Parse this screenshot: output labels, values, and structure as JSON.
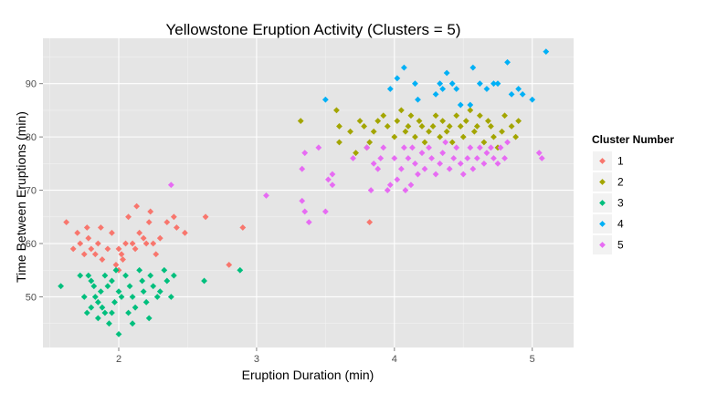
{
  "chart_data": {
    "type": "scatter",
    "title": "Yellowstone Eruption Activity (Clusters = 5)",
    "xlabel": "Eruption Duration (min)",
    "ylabel": "Time Between Eruptions (min)",
    "xlim": [
      1.45,
      5.3
    ],
    "ylim": [
      40.5,
      98.5
    ],
    "x_ticks": [
      2,
      3,
      4,
      5
    ],
    "y_ticks": [
      50,
      60,
      70,
      80,
      90
    ],
    "grid": true,
    "legend": {
      "title": "Cluster Number",
      "position": "right",
      "entries": [
        "1",
        "2",
        "3",
        "4",
        "5"
      ]
    },
    "series": [
      {
        "name": "1",
        "color": "#F8766D",
        "points": [
          [
            1.62,
            64
          ],
          [
            1.67,
            59
          ],
          [
            1.72,
            60
          ],
          [
            1.75,
            58
          ],
          [
            1.77,
            63
          ],
          [
            1.8,
            59
          ],
          [
            1.83,
            58
          ],
          [
            1.85,
            60
          ],
          [
            1.87,
            63
          ],
          [
            1.88,
            57
          ],
          [
            1.78,
            61
          ],
          [
            1.95,
            62
          ],
          [
            1.98,
            56
          ],
          [
            2.0,
            59
          ],
          [
            2.02,
            58
          ],
          [
            2.03,
            57
          ],
          [
            2.05,
            60
          ],
          [
            2.07,
            65
          ],
          [
            2.1,
            60
          ],
          [
            2.12,
            59
          ],
          [
            2.13,
            67
          ],
          [
            2.15,
            62
          ],
          [
            2.18,
            61
          ],
          [
            2.2,
            60
          ],
          [
            2.22,
            64
          ],
          [
            2.25,
            60
          ],
          [
            2.27,
            58
          ],
          [
            2.3,
            61
          ],
          [
            2.35,
            64
          ],
          [
            2.4,
            65
          ],
          [
            2.42,
            63
          ],
          [
            2.48,
            62
          ],
          [
            2.63,
            65
          ],
          [
            2.8,
            56
          ],
          [
            2.9,
            63
          ],
          [
            1.92,
            59
          ],
          [
            1.7,
            62
          ],
          [
            2.0,
            55
          ],
          [
            2.23,
            66
          ],
          [
            3.82,
            64
          ]
        ]
      },
      {
        "name": "2",
        "color": "#A3A500",
        "points": [
          [
            3.32,
            83
          ],
          [
            3.58,
            85
          ],
          [
            3.6,
            79
          ],
          [
            3.6,
            82
          ],
          [
            3.68,
            81
          ],
          [
            3.72,
            77
          ],
          [
            3.75,
            83
          ],
          [
            3.78,
            82
          ],
          [
            3.8,
            78
          ],
          [
            3.82,
            79
          ],
          [
            3.85,
            81
          ],
          [
            3.88,
            83
          ],
          [
            3.92,
            84
          ],
          [
            3.95,
            82
          ],
          [
            4.0,
            80
          ],
          [
            4.02,
            83
          ],
          [
            4.05,
            85
          ],
          [
            4.08,
            81
          ],
          [
            4.1,
            82
          ],
          [
            4.12,
            84
          ],
          [
            4.15,
            80
          ],
          [
            4.18,
            83
          ],
          [
            4.2,
            82
          ],
          [
            4.22,
            79
          ],
          [
            4.25,
            81
          ],
          [
            4.28,
            82
          ],
          [
            4.3,
            84
          ],
          [
            4.33,
            80
          ],
          [
            4.35,
            83
          ],
          [
            4.38,
            81
          ],
          [
            4.4,
            82
          ],
          [
            4.42,
            79
          ],
          [
            4.45,
            84
          ],
          [
            4.48,
            82
          ],
          [
            4.5,
            80
          ],
          [
            4.52,
            83
          ],
          [
            4.55,
            85
          ],
          [
            4.58,
            81
          ],
          [
            4.6,
            82
          ],
          [
            4.62,
            84
          ],
          [
            4.65,
            79
          ],
          [
            4.68,
            83
          ],
          [
            4.7,
            82
          ],
          [
            4.72,
            80
          ],
          [
            4.75,
            78
          ],
          [
            4.78,
            81
          ],
          [
            4.8,
            84
          ],
          [
            4.85,
            82
          ],
          [
            4.88,
            80
          ],
          [
            4.9,
            83
          ]
        ]
      },
      {
        "name": "3",
        "color": "#00BF7D",
        "points": [
          [
            1.58,
            52
          ],
          [
            1.72,
            54
          ],
          [
            1.75,
            50
          ],
          [
            1.77,
            47
          ],
          [
            1.78,
            54
          ],
          [
            1.8,
            53
          ],
          [
            1.82,
            52
          ],
          [
            1.83,
            50
          ],
          [
            1.85,
            49
          ],
          [
            1.85,
            46
          ],
          [
            1.87,
            51
          ],
          [
            1.88,
            48
          ],
          [
            1.9,
            54
          ],
          [
            1.9,
            47
          ],
          [
            1.92,
            52
          ],
          [
            1.93,
            45
          ],
          [
            1.95,
            53
          ],
          [
            1.97,
            49
          ],
          [
            1.98,
            55
          ],
          [
            2.0,
            51
          ],
          [
            2.0,
            43
          ],
          [
            2.02,
            50
          ],
          [
            2.05,
            54
          ],
          [
            2.07,
            47
          ],
          [
            2.08,
            52
          ],
          [
            2.1,
            50
          ],
          [
            2.12,
            48
          ],
          [
            2.15,
            55
          ],
          [
            2.17,
            53
          ],
          [
            2.18,
            51
          ],
          [
            2.2,
            49
          ],
          [
            2.22,
            46
          ],
          [
            2.23,
            54
          ],
          [
            2.25,
            52
          ],
          [
            2.28,
            50
          ],
          [
            2.3,
            51
          ],
          [
            2.33,
            55
          ],
          [
            2.35,
            53
          ],
          [
            2.38,
            50
          ],
          [
            2.4,
            54
          ],
          [
            2.62,
            53
          ],
          [
            2.88,
            55
          ],
          [
            1.8,
            48
          ],
          [
            1.95,
            47
          ],
          [
            2.1,
            45
          ]
        ]
      },
      {
        "name": "4",
        "color": "#00B0F6",
        "points": [
          [
            3.5,
            87
          ],
          [
            3.97,
            89
          ],
          [
            4.07,
            93
          ],
          [
            4.15,
            90
          ],
          [
            4.17,
            87
          ],
          [
            4.3,
            88
          ],
          [
            4.33,
            90
          ],
          [
            4.35,
            89
          ],
          [
            4.38,
            92
          ],
          [
            4.45,
            89
          ],
          [
            4.48,
            86
          ],
          [
            4.55,
            86
          ],
          [
            4.57,
            93
          ],
          [
            4.62,
            90
          ],
          [
            4.67,
            89
          ],
          [
            4.72,
            90
          ],
          [
            4.75,
            90
          ],
          [
            4.82,
            94
          ],
          [
            4.85,
            88
          ],
          [
            4.9,
            89
          ],
          [
            4.93,
            88
          ],
          [
            5.0,
            87
          ],
          [
            5.1,
            96
          ],
          [
            4.02,
            91
          ],
          [
            4.42,
            90
          ]
        ]
      },
      {
        "name": "5",
        "color": "#E76BF3",
        "points": [
          [
            2.38,
            71
          ],
          [
            3.07,
            69
          ],
          [
            3.33,
            74
          ],
          [
            3.33,
            68
          ],
          [
            3.35,
            66
          ],
          [
            3.38,
            64
          ],
          [
            3.45,
            78
          ],
          [
            3.5,
            66
          ],
          [
            3.55,
            73
          ],
          [
            3.55,
            71
          ],
          [
            3.7,
            76
          ],
          [
            3.8,
            78
          ],
          [
            3.83,
            70
          ],
          [
            3.85,
            75
          ],
          [
            3.88,
            74
          ],
          [
            3.9,
            76
          ],
          [
            3.92,
            78
          ],
          [
            3.95,
            70
          ],
          [
            3.97,
            71
          ],
          [
            4.0,
            76
          ],
          [
            4.02,
            72
          ],
          [
            4.05,
            74
          ],
          [
            4.07,
            78
          ],
          [
            4.08,
            70
          ],
          [
            4.1,
            76
          ],
          [
            4.12,
            71
          ],
          [
            4.13,
            78
          ],
          [
            4.15,
            75
          ],
          [
            4.17,
            73
          ],
          [
            4.2,
            77
          ],
          [
            4.22,
            74
          ],
          [
            4.25,
            78
          ],
          [
            4.27,
            76
          ],
          [
            4.3,
            73
          ],
          [
            4.33,
            75
          ],
          [
            4.35,
            77
          ],
          [
            4.37,
            79
          ],
          [
            4.4,
            74
          ],
          [
            4.43,
            76
          ],
          [
            4.45,
            78
          ],
          [
            4.48,
            75
          ],
          [
            4.5,
            73
          ],
          [
            4.53,
            76
          ],
          [
            4.55,
            78
          ],
          [
            4.57,
            74
          ],
          [
            4.6,
            76
          ],
          [
            4.62,
            78
          ],
          [
            4.65,
            75
          ],
          [
            4.67,
            77
          ],
          [
            4.7,
            78
          ],
          [
            4.72,
            76
          ],
          [
            4.75,
            75
          ],
          [
            4.77,
            78
          ],
          [
            4.8,
            76
          ],
          [
            4.82,
            79
          ],
          [
            5.05,
            77
          ],
          [
            5.07,
            76
          ],
          [
            3.52,
            72
          ],
          [
            3.35,
            77
          ]
        ]
      }
    ]
  }
}
